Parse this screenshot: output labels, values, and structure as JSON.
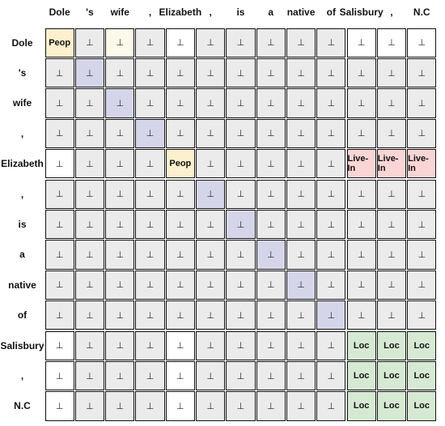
{
  "tokens": [
    "Dole",
    "'s",
    "wife",
    ",",
    "Elizabeth",
    ",",
    "is",
    "a",
    "native",
    "of",
    "Salisbury",
    ",",
    "N.C"
  ],
  "null_symbol": "⊥",
  "palette": {
    "default": "#ebebeb",
    "white": "#ffffff",
    "peop": "#fdf0cc",
    "peop_light": "#fcf8ea",
    "diag": "#d5d5ea",
    "live_in": "#f9d5d5",
    "loc": "#d6ead3"
  },
  "cells": [
    [
      {
        "t": "Peop",
        "c": "peop",
        "b": true
      },
      {
        "t": "⊥",
        "c": "default"
      },
      {
        "t": "⊥",
        "c": "peop_light"
      },
      {
        "t": "⊥",
        "c": "default"
      },
      {
        "t": "⊥",
        "c": "white"
      },
      {
        "t": "⊥",
        "c": "default"
      },
      {
        "t": "⊥",
        "c": "default"
      },
      {
        "t": "⊥",
        "c": "default"
      },
      {
        "t": "⊥",
        "c": "default"
      },
      {
        "t": "⊥",
        "c": "default"
      },
      {
        "t": "⊥",
        "c": "white"
      },
      {
        "t": "⊥",
        "c": "white"
      },
      {
        "t": "⊥",
        "c": "white"
      }
    ],
    [
      {
        "t": "⊥",
        "c": "default"
      },
      {
        "t": "⊥",
        "c": "diag"
      },
      {
        "t": "⊥",
        "c": "default"
      },
      {
        "t": "⊥",
        "c": "default"
      },
      {
        "t": "⊥",
        "c": "default"
      },
      {
        "t": "⊥",
        "c": "default"
      },
      {
        "t": "⊥",
        "c": "default"
      },
      {
        "t": "⊥",
        "c": "default"
      },
      {
        "t": "⊥",
        "c": "default"
      },
      {
        "t": "⊥",
        "c": "default"
      },
      {
        "t": "⊥",
        "c": "default"
      },
      {
        "t": "⊥",
        "c": "default"
      },
      {
        "t": "⊥",
        "c": "default"
      }
    ],
    [
      {
        "t": "⊥",
        "c": "default"
      },
      {
        "t": "⊥",
        "c": "default"
      },
      {
        "t": "⊥",
        "c": "diag"
      },
      {
        "t": "⊥",
        "c": "default"
      },
      {
        "t": "⊥",
        "c": "default"
      },
      {
        "t": "⊥",
        "c": "default"
      },
      {
        "t": "⊥",
        "c": "default"
      },
      {
        "t": "⊥",
        "c": "default"
      },
      {
        "t": "⊥",
        "c": "default"
      },
      {
        "t": "⊥",
        "c": "default"
      },
      {
        "t": "⊥",
        "c": "default"
      },
      {
        "t": "⊥",
        "c": "default"
      },
      {
        "t": "⊥",
        "c": "default"
      }
    ],
    [
      {
        "t": "⊥",
        "c": "default"
      },
      {
        "t": "⊥",
        "c": "default"
      },
      {
        "t": "⊥",
        "c": "default"
      },
      {
        "t": "⊥",
        "c": "diag"
      },
      {
        "t": "⊥",
        "c": "default"
      },
      {
        "t": "⊥",
        "c": "default"
      },
      {
        "t": "⊥",
        "c": "default"
      },
      {
        "t": "⊥",
        "c": "default"
      },
      {
        "t": "⊥",
        "c": "default"
      },
      {
        "t": "⊥",
        "c": "default"
      },
      {
        "t": "⊥",
        "c": "default"
      },
      {
        "t": "⊥",
        "c": "default"
      },
      {
        "t": "⊥",
        "c": "default"
      }
    ],
    [
      {
        "t": "⊥",
        "c": "white"
      },
      {
        "t": "⊥",
        "c": "default"
      },
      {
        "t": "⊥",
        "c": "default"
      },
      {
        "t": "⊥",
        "c": "default"
      },
      {
        "t": "Peop",
        "c": "peop",
        "b": true
      },
      {
        "t": "⊥",
        "c": "default"
      },
      {
        "t": "⊥",
        "c": "default"
      },
      {
        "t": "⊥",
        "c": "default"
      },
      {
        "t": "⊥",
        "c": "default"
      },
      {
        "t": "⊥",
        "c": "default"
      },
      {
        "t": "Live-In",
        "c": "live_in",
        "b": true
      },
      {
        "t": "Live-In",
        "c": "live_in",
        "b": true
      },
      {
        "t": "Live-In",
        "c": "live_in",
        "b": true
      }
    ],
    [
      {
        "t": "⊥",
        "c": "default"
      },
      {
        "t": "⊥",
        "c": "default"
      },
      {
        "t": "⊥",
        "c": "default"
      },
      {
        "t": "⊥",
        "c": "default"
      },
      {
        "t": "⊥",
        "c": "default"
      },
      {
        "t": "⊥",
        "c": "diag"
      },
      {
        "t": "⊥",
        "c": "default"
      },
      {
        "t": "⊥",
        "c": "default"
      },
      {
        "t": "⊥",
        "c": "default"
      },
      {
        "t": "⊥",
        "c": "default"
      },
      {
        "t": "⊥",
        "c": "default"
      },
      {
        "t": "⊥",
        "c": "default"
      },
      {
        "t": "⊥",
        "c": "default"
      }
    ],
    [
      {
        "t": "⊥",
        "c": "default"
      },
      {
        "t": "⊥",
        "c": "default"
      },
      {
        "t": "⊥",
        "c": "default"
      },
      {
        "t": "⊥",
        "c": "default"
      },
      {
        "t": "⊥",
        "c": "default"
      },
      {
        "t": "⊥",
        "c": "default"
      },
      {
        "t": "⊥",
        "c": "diag"
      },
      {
        "t": "⊥",
        "c": "default"
      },
      {
        "t": "⊥",
        "c": "default"
      },
      {
        "t": "⊥",
        "c": "default"
      },
      {
        "t": "⊥",
        "c": "default"
      },
      {
        "t": "⊥",
        "c": "default"
      },
      {
        "t": "⊥",
        "c": "default"
      }
    ],
    [
      {
        "t": "⊥",
        "c": "default"
      },
      {
        "t": "⊥",
        "c": "default"
      },
      {
        "t": "⊥",
        "c": "default"
      },
      {
        "t": "⊥",
        "c": "default"
      },
      {
        "t": "⊥",
        "c": "default"
      },
      {
        "t": "⊥",
        "c": "default"
      },
      {
        "t": "⊥",
        "c": "default"
      },
      {
        "t": "⊥",
        "c": "diag"
      },
      {
        "t": "⊥",
        "c": "default"
      },
      {
        "t": "⊥",
        "c": "default"
      },
      {
        "t": "⊥",
        "c": "default"
      },
      {
        "t": "⊥",
        "c": "default"
      },
      {
        "t": "⊥",
        "c": "default"
      }
    ],
    [
      {
        "t": "⊥",
        "c": "default"
      },
      {
        "t": "⊥",
        "c": "default"
      },
      {
        "t": "⊥",
        "c": "default"
      },
      {
        "t": "⊥",
        "c": "default"
      },
      {
        "t": "⊥",
        "c": "default"
      },
      {
        "t": "⊥",
        "c": "default"
      },
      {
        "t": "⊥",
        "c": "default"
      },
      {
        "t": "⊥",
        "c": "default"
      },
      {
        "t": "⊥",
        "c": "diag"
      },
      {
        "t": "⊥",
        "c": "default"
      },
      {
        "t": "⊥",
        "c": "default"
      },
      {
        "t": "⊥",
        "c": "default"
      },
      {
        "t": "⊥",
        "c": "default"
      }
    ],
    [
      {
        "t": "⊥",
        "c": "default"
      },
      {
        "t": "⊥",
        "c": "default"
      },
      {
        "t": "⊥",
        "c": "default"
      },
      {
        "t": "⊥",
        "c": "default"
      },
      {
        "t": "⊥",
        "c": "default"
      },
      {
        "t": "⊥",
        "c": "default"
      },
      {
        "t": "⊥",
        "c": "default"
      },
      {
        "t": "⊥",
        "c": "default"
      },
      {
        "t": "⊥",
        "c": "default"
      },
      {
        "t": "⊥",
        "c": "diag"
      },
      {
        "t": "⊥",
        "c": "default"
      },
      {
        "t": "⊥",
        "c": "default"
      },
      {
        "t": "⊥",
        "c": "default"
      }
    ],
    [
      {
        "t": "⊥",
        "c": "white"
      },
      {
        "t": "⊥",
        "c": "default"
      },
      {
        "t": "⊥",
        "c": "default"
      },
      {
        "t": "⊥",
        "c": "default"
      },
      {
        "t": "⊥",
        "c": "white"
      },
      {
        "t": "⊥",
        "c": "default"
      },
      {
        "t": "⊥",
        "c": "default"
      },
      {
        "t": "⊥",
        "c": "default"
      },
      {
        "t": "⊥",
        "c": "default"
      },
      {
        "t": "⊥",
        "c": "default"
      },
      {
        "t": "Loc",
        "c": "loc",
        "b": true
      },
      {
        "t": "Loc",
        "c": "loc",
        "b": true
      },
      {
        "t": "Loc",
        "c": "loc",
        "b": true
      }
    ],
    [
      {
        "t": "⊥",
        "c": "white"
      },
      {
        "t": "⊥",
        "c": "default"
      },
      {
        "t": "⊥",
        "c": "default"
      },
      {
        "t": "⊥",
        "c": "default"
      },
      {
        "t": "⊥",
        "c": "white"
      },
      {
        "t": "⊥",
        "c": "default"
      },
      {
        "t": "⊥",
        "c": "default"
      },
      {
        "t": "⊥",
        "c": "default"
      },
      {
        "t": "⊥",
        "c": "default"
      },
      {
        "t": "⊥",
        "c": "default"
      },
      {
        "t": "Loc",
        "c": "loc",
        "b": true
      },
      {
        "t": "Loc",
        "c": "loc",
        "b": true
      },
      {
        "t": "Loc",
        "c": "loc",
        "b": true
      }
    ],
    [
      {
        "t": "⊥",
        "c": "white"
      },
      {
        "t": "⊥",
        "c": "default"
      },
      {
        "t": "⊥",
        "c": "default"
      },
      {
        "t": "⊥",
        "c": "default"
      },
      {
        "t": "⊥",
        "c": "white"
      },
      {
        "t": "⊥",
        "c": "default"
      },
      {
        "t": "⊥",
        "c": "default"
      },
      {
        "t": "⊥",
        "c": "default"
      },
      {
        "t": "⊥",
        "c": "default"
      },
      {
        "t": "⊥",
        "c": "default"
      },
      {
        "t": "Loc",
        "c": "loc",
        "b": true
      },
      {
        "t": "Loc",
        "c": "loc",
        "b": true
      },
      {
        "t": "Loc",
        "c": "loc",
        "b": true
      }
    ]
  ]
}
